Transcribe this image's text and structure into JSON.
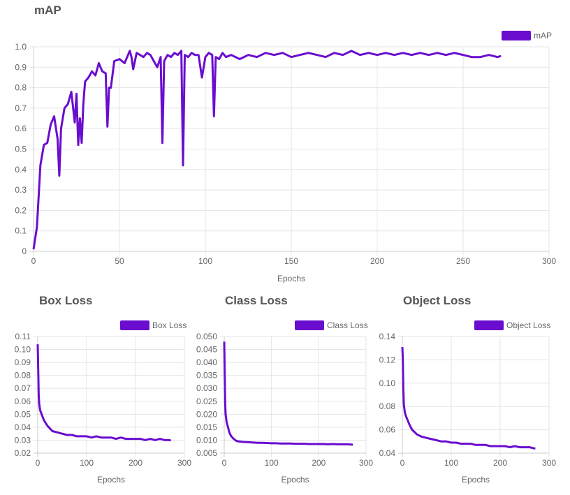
{
  "colors": {
    "series": "#6a0dcf",
    "grid": "#e5e5e5",
    "axis": "#cccccc"
  },
  "chart_data": [
    {
      "id": "map",
      "type": "line",
      "title": "mAP",
      "xlabel": "Epochs",
      "ylabel": "",
      "xlim": [
        0,
        300
      ],
      "ylim": [
        0,
        1.0
      ],
      "xticks": [
        "0",
        "50",
        "100",
        "150",
        "200",
        "250",
        "300"
      ],
      "yticks": [
        "0",
        "0.1",
        "0.2",
        "0.3",
        "0.4",
        "0.5",
        "0.6",
        "0.7",
        "0.8",
        "0.9",
        "1.0"
      ],
      "legend": "top-right",
      "grid": true,
      "series": [
        {
          "name": "mAP",
          "x": [
            0,
            2,
            4,
            6,
            8,
            10,
            12,
            14,
            15,
            16,
            18,
            20,
            22,
            24,
            25,
            26,
            27,
            28,
            29,
            30,
            32,
            34,
            36,
            38,
            40,
            42,
            43,
            44,
            45,
            47,
            50,
            53,
            55,
            56,
            57,
            58,
            60,
            62,
            64,
            66,
            68,
            70,
            72,
            74,
            75,
            76,
            78,
            80,
            82,
            84,
            86,
            87,
            88,
            90,
            92,
            94,
            96,
            98,
            100,
            102,
            104,
            105,
            106,
            108,
            110,
            112,
            115,
            120,
            125,
            130,
            135,
            140,
            145,
            150,
            155,
            160,
            165,
            170,
            175,
            180,
            185,
            190,
            195,
            200,
            205,
            210,
            215,
            220,
            225,
            230,
            235,
            240,
            245,
            250,
            255,
            260,
            265,
            270,
            272
          ],
          "y": [
            0.01,
            0.12,
            0.42,
            0.52,
            0.53,
            0.62,
            0.66,
            0.55,
            0.37,
            0.6,
            0.7,
            0.72,
            0.78,
            0.63,
            0.77,
            0.52,
            0.65,
            0.53,
            0.72,
            0.83,
            0.85,
            0.88,
            0.86,
            0.92,
            0.88,
            0.87,
            0.61,
            0.8,
            0.8,
            0.93,
            0.94,
            0.92,
            0.96,
            0.98,
            0.95,
            0.89,
            0.97,
            0.96,
            0.95,
            0.97,
            0.96,
            0.93,
            0.9,
            0.95,
            0.53,
            0.93,
            0.96,
            0.95,
            0.97,
            0.96,
            0.98,
            0.42,
            0.96,
            0.95,
            0.97,
            0.96,
            0.96,
            0.85,
            0.95,
            0.97,
            0.96,
            0.66,
            0.95,
            0.94,
            0.97,
            0.95,
            0.96,
            0.94,
            0.96,
            0.95,
            0.97,
            0.96,
            0.97,
            0.95,
            0.96,
            0.97,
            0.96,
            0.95,
            0.97,
            0.96,
            0.98,
            0.96,
            0.97,
            0.96,
            0.97,
            0.96,
            0.97,
            0.96,
            0.97,
            0.96,
            0.97,
            0.96,
            0.97,
            0.96,
            0.95,
            0.95,
            0.96,
            0.95,
            0.955
          ]
        }
      ]
    },
    {
      "id": "box",
      "type": "line",
      "title": "Box Loss",
      "xlabel": "Epochs",
      "ylabel": "",
      "xlim": [
        0,
        300
      ],
      "ylim": [
        0.02,
        0.11
      ],
      "xticks": [
        "0",
        "100",
        "200",
        "300"
      ],
      "yticks": [
        "0.02",
        "0.03",
        "0.04",
        "0.05",
        "0.06",
        "0.07",
        "0.08",
        "0.09",
        "0.10",
        "0.11"
      ],
      "legend": "top-right",
      "grid": true,
      "series": [
        {
          "name": "Box Loss",
          "x": [
            0,
            1,
            2,
            3,
            5,
            8,
            10,
            12,
            15,
            20,
            25,
            30,
            40,
            50,
            60,
            70,
            80,
            90,
            100,
            110,
            120,
            130,
            140,
            150,
            160,
            170,
            180,
            190,
            200,
            210,
            220,
            230,
            240,
            250,
            260,
            270,
            272
          ],
          "y": [
            0.104,
            0.085,
            0.065,
            0.058,
            0.053,
            0.05,
            0.048,
            0.046,
            0.044,
            0.041,
            0.039,
            0.037,
            0.036,
            0.035,
            0.034,
            0.034,
            0.033,
            0.033,
            0.033,
            0.032,
            0.033,
            0.032,
            0.032,
            0.032,
            0.031,
            0.032,
            0.031,
            0.031,
            0.031,
            0.031,
            0.03,
            0.031,
            0.03,
            0.031,
            0.03,
            0.03,
            0.0295
          ]
        }
      ]
    },
    {
      "id": "class",
      "type": "line",
      "title": "Class Loss",
      "xlabel": "Epochs",
      "ylabel": "",
      "xlim": [
        0,
        300
      ],
      "ylim": [
        0.005,
        0.05
      ],
      "xticks": [
        "0",
        "100",
        "200",
        "300"
      ],
      "yticks": [
        "0.005",
        "0.010",
        "0.015",
        "0.020",
        "0.025",
        "0.030",
        "0.035",
        "0.040",
        "0.045",
        "0.050"
      ],
      "legend": "top-right",
      "grid": true,
      "series": [
        {
          "name": "Class Loss",
          "x": [
            0,
            1,
            2,
            3,
            5,
            8,
            10,
            12,
            15,
            20,
            25,
            30,
            40,
            50,
            60,
            70,
            80,
            90,
            100,
            110,
            120,
            130,
            140,
            150,
            160,
            170,
            180,
            190,
            200,
            210,
            220,
            230,
            240,
            250,
            260,
            270,
            272
          ],
          "y": [
            0.048,
            0.035,
            0.024,
            0.02,
            0.017,
            0.015,
            0.0135,
            0.0125,
            0.0115,
            0.0105,
            0.0098,
            0.0095,
            0.0093,
            0.0092,
            0.0091,
            0.009,
            0.009,
            0.0089,
            0.0088,
            0.0088,
            0.0087,
            0.0087,
            0.0087,
            0.0086,
            0.0086,
            0.0086,
            0.0085,
            0.0085,
            0.0085,
            0.0085,
            0.0084,
            0.0085,
            0.0084,
            0.0084,
            0.0084,
            0.0083,
            0.0082
          ]
        }
      ]
    },
    {
      "id": "object",
      "type": "line",
      "title": "Object Loss",
      "xlabel": "Epochs",
      "ylabel": "",
      "xlim": [
        0,
        300
      ],
      "ylim": [
        0.04,
        0.14
      ],
      "xticks": [
        "0",
        "100",
        "200",
        "300"
      ],
      "yticks": [
        "0.04",
        "0.06",
        "0.08",
        "0.10",
        "0.12",
        "0.14"
      ],
      "legend": "top-right",
      "grid": true,
      "series": [
        {
          "name": "Object Loss",
          "x": [
            0,
            1,
            2,
            3,
            5,
            8,
            10,
            12,
            15,
            20,
            25,
            30,
            40,
            50,
            60,
            70,
            80,
            90,
            100,
            110,
            120,
            130,
            140,
            150,
            160,
            170,
            180,
            190,
            200,
            210,
            220,
            230,
            240,
            250,
            260,
            270,
            272
          ],
          "y": [
            0.131,
            0.12,
            0.095,
            0.082,
            0.075,
            0.071,
            0.069,
            0.067,
            0.064,
            0.06,
            0.058,
            0.056,
            0.054,
            0.053,
            0.052,
            0.051,
            0.05,
            0.05,
            0.049,
            0.049,
            0.048,
            0.048,
            0.048,
            0.047,
            0.047,
            0.047,
            0.046,
            0.046,
            0.046,
            0.046,
            0.045,
            0.046,
            0.045,
            0.045,
            0.045,
            0.044,
            0.044
          ]
        }
      ]
    }
  ]
}
